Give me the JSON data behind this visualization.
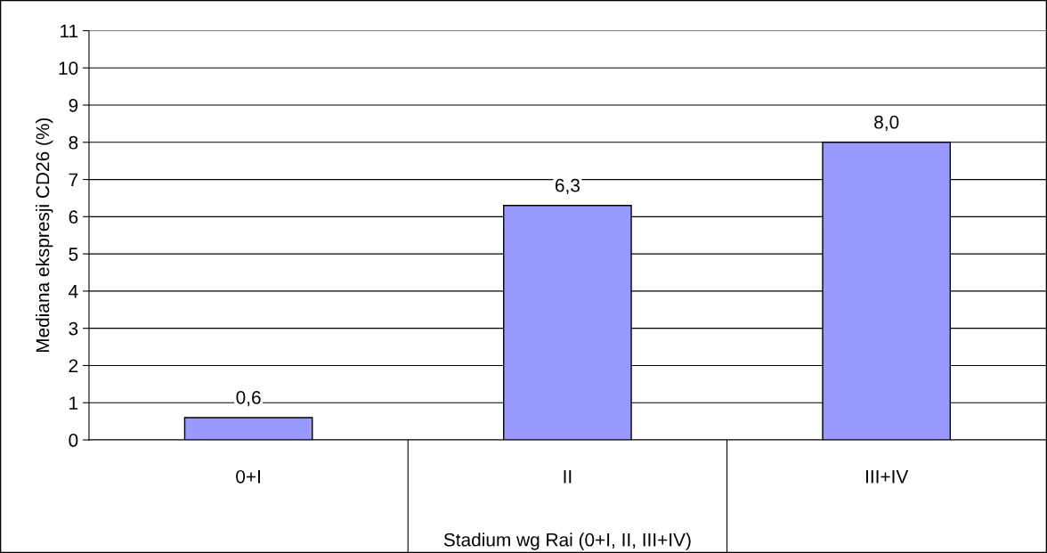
{
  "chart_data": {
    "type": "bar",
    "categories": [
      "0+I",
      "II",
      "III+IV"
    ],
    "values": [
      0.6,
      6.3,
      8.0
    ],
    "value_labels": [
      "0,6",
      "6,3",
      "8,0"
    ],
    "color": "#9999ff",
    "xlabel": "Stadium wg Rai (0+I, II, III+IV)",
    "ylabel": "Mediana ekspresji CD26 (%)",
    "ylim": [
      0,
      11
    ],
    "yticks": [
      0,
      1,
      2,
      3,
      4,
      5,
      6,
      7,
      8,
      9,
      10,
      11
    ],
    "grid": "y"
  }
}
